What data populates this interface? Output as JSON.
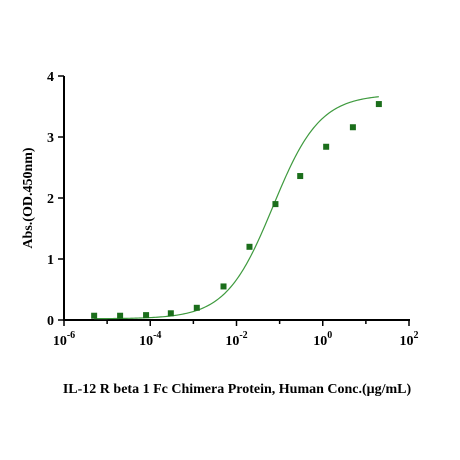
{
  "chart_data": {
    "type": "scatter",
    "xscale": "log10",
    "xlabel": "IL-12 R beta 1 Fc Chimera Protein, Human Conc.(μg/mL)",
    "ylabel": "Abs.(OD.450nm)",
    "xlim": [
      1e-06,
      100
    ],
    "ylim": [
      0,
      4
    ],
    "x_ticks": [
      1e-06,
      0.0001,
      0.01,
      1,
      100
    ],
    "x_tick_labels": [
      {
        "base": "10",
        "exp": "-6"
      },
      {
        "base": "10",
        "exp": "-4"
      },
      {
        "base": "10",
        "exp": "-2"
      },
      {
        "base": "10",
        "exp": "0"
      },
      {
        "base": "10",
        "exp": "2"
      }
    ],
    "y_ticks": [
      0,
      1,
      2,
      3,
      4
    ],
    "y_tick_labels": [
      "0",
      "1",
      "2",
      "3",
      "4"
    ],
    "series": [
      {
        "x": [
          5e-06,
          2e-05,
          8e-05,
          0.0003,
          0.0012,
          0.005,
          0.02,
          0.08,
          0.3,
          1.2,
          5,
          20
        ],
        "y": [
          0.07,
          0.07,
          0.08,
          0.11,
          0.2,
          0.55,
          1.2,
          1.9,
          2.36,
          2.84,
          3.16,
          3.54
        ],
        "marker_color": "#1b6e1b"
      }
    ],
    "fit_curve": {
      "model": "4PL",
      "bottom": 0.02,
      "top": 3.7,
      "ec50": 0.07,
      "hill": 0.8,
      "x_range": [
        5e-06,
        20
      ],
      "color": "#3e9a3e"
    },
    "grid": false,
    "legend": "none"
  }
}
